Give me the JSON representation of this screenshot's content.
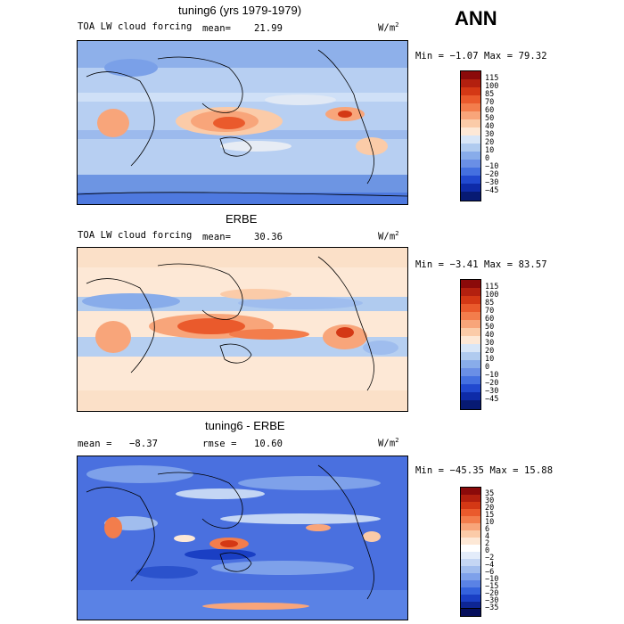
{
  "header": {
    "season": "ANN"
  },
  "panels": [
    {
      "id": "model",
      "title": "tuning6 (yrs 1979-1979)",
      "variable": "TOA LW cloud forcing",
      "mean_label": "mean=",
      "mean_value": "21.99",
      "units": "W/m",
      "units_exp": "2",
      "minmax": "Min =  −1.07 Max =  79.32",
      "colorbar_labels": [
        "115",
        "100",
        "85",
        "70",
        "60",
        "50",
        "40",
        "30",
        "20",
        "10",
        "0",
        "−10",
        "−20",
        "−30",
        "−45"
      ],
      "colorbar_colors": [
        "#8b0a0a",
        "#b3200f",
        "#d43815",
        "#ea5a2c",
        "#f37d4c",
        "#f8a57a",
        "#fbcba8",
        "#fde8d6",
        "#d8e6f7",
        "#b0cbef",
        "#88acea",
        "#6a8fe6",
        "#4470e0",
        "#2149cf",
        "#0e2ba8",
        "#071a73"
      ]
    },
    {
      "id": "obs",
      "title": "ERBE",
      "variable": "TOA LW cloud forcing",
      "mean_label": "mean=",
      "mean_value": "30.36",
      "units": "W/m",
      "units_exp": "2",
      "minmax": "Min =  −3.41 Max =  83.57",
      "colorbar_labels": [
        "115",
        "100",
        "85",
        "70",
        "60",
        "50",
        "40",
        "30",
        "20",
        "10",
        "0",
        "−10",
        "−20",
        "−30",
        "−45"
      ],
      "colorbar_colors": [
        "#8b0a0a",
        "#b3200f",
        "#d43815",
        "#ea5a2c",
        "#f37d4c",
        "#f8a57a",
        "#fbcba8",
        "#fde8d6",
        "#d8e6f7",
        "#b0cbef",
        "#88acea",
        "#6a8fe6",
        "#4470e0",
        "#2149cf",
        "#0e2ba8",
        "#071a73"
      ]
    },
    {
      "id": "diff",
      "title": "tuning6 - ERBE",
      "mean_label": "mean =",
      "mean_value": "−8.37",
      "rmse_label": "rmse =",
      "rmse_value": "10.60",
      "units": "W/m",
      "units_exp": "2",
      "minmax": "Min = −45.35 Max =  15.88",
      "colorbar_labels": [
        "35",
        "30",
        "20",
        "15",
        "10",
        "6",
        "4",
        "2",
        "0",
        "−2",
        "−4",
        "−6",
        "−10",
        "−15",
        "−20",
        "−30",
        "−35"
      ],
      "colorbar_colors": [
        "#8b0a0a",
        "#b3200f",
        "#d43815",
        "#ea5a2c",
        "#f37d4c",
        "#f8a57a",
        "#fbcba8",
        "#fde8d6",
        "#ffffff",
        "#e3ecfa",
        "#c4d6f4",
        "#a1bdee",
        "#7ea1ea",
        "#5a82e5",
        "#3462dc",
        "#1a3fc4",
        "#0e2694",
        "#060f5c"
      ]
    }
  ]
}
